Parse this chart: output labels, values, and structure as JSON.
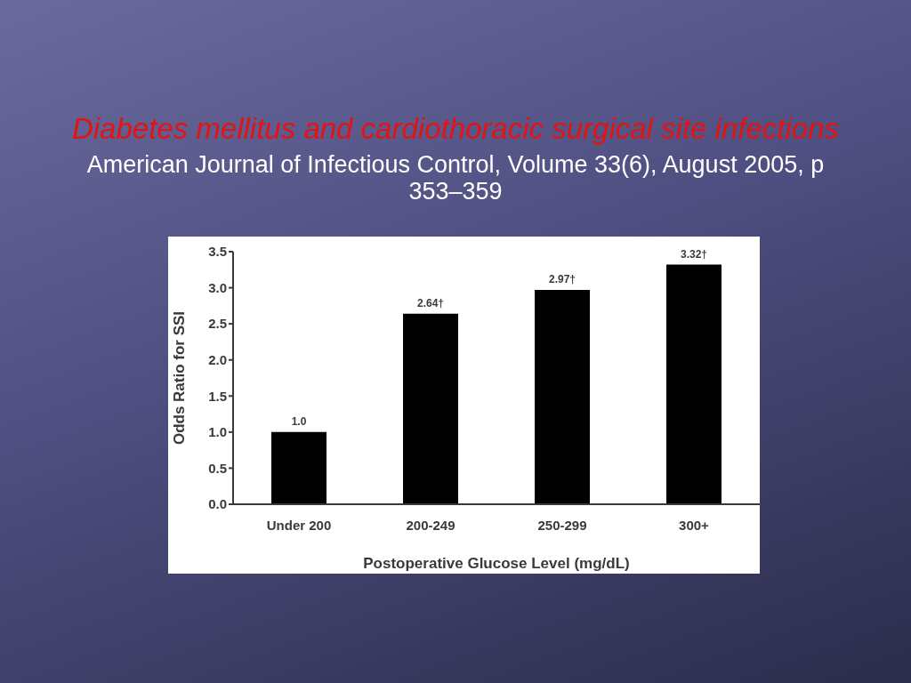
{
  "chart_data": {
    "type": "bar",
    "title": "Diabetes mellitus and cardiothoracic surgical site infections",
    "subtitle": "American Journal of Infectious Control, Volume 33(6), August 2005, p 353–359",
    "xlabel": "Postoperative Glucose Level (mg/dL)",
    "ylabel": "Odds Ratio for SSI",
    "categories": [
      "Under 200",
      "200-249",
      "250-299",
      "300+"
    ],
    "values": [
      1.0,
      2.64,
      2.97,
      3.32
    ],
    "value_labels": [
      "1.0",
      "2.64†",
      "2.97†",
      "3.32†"
    ],
    "color": "#000000",
    "ylim": [
      0,
      3.5
    ],
    "yticks": [
      {
        "value": 0,
        "label": "0.0"
      },
      0.5,
      {
        "value": 1,
        "label": "1.0"
      },
      1.5,
      {
        "value": 2,
        "label": "2.0"
      },
      2.5,
      {
        "value": 3,
        "label": "3.0"
      },
      3.5
    ]
  }
}
